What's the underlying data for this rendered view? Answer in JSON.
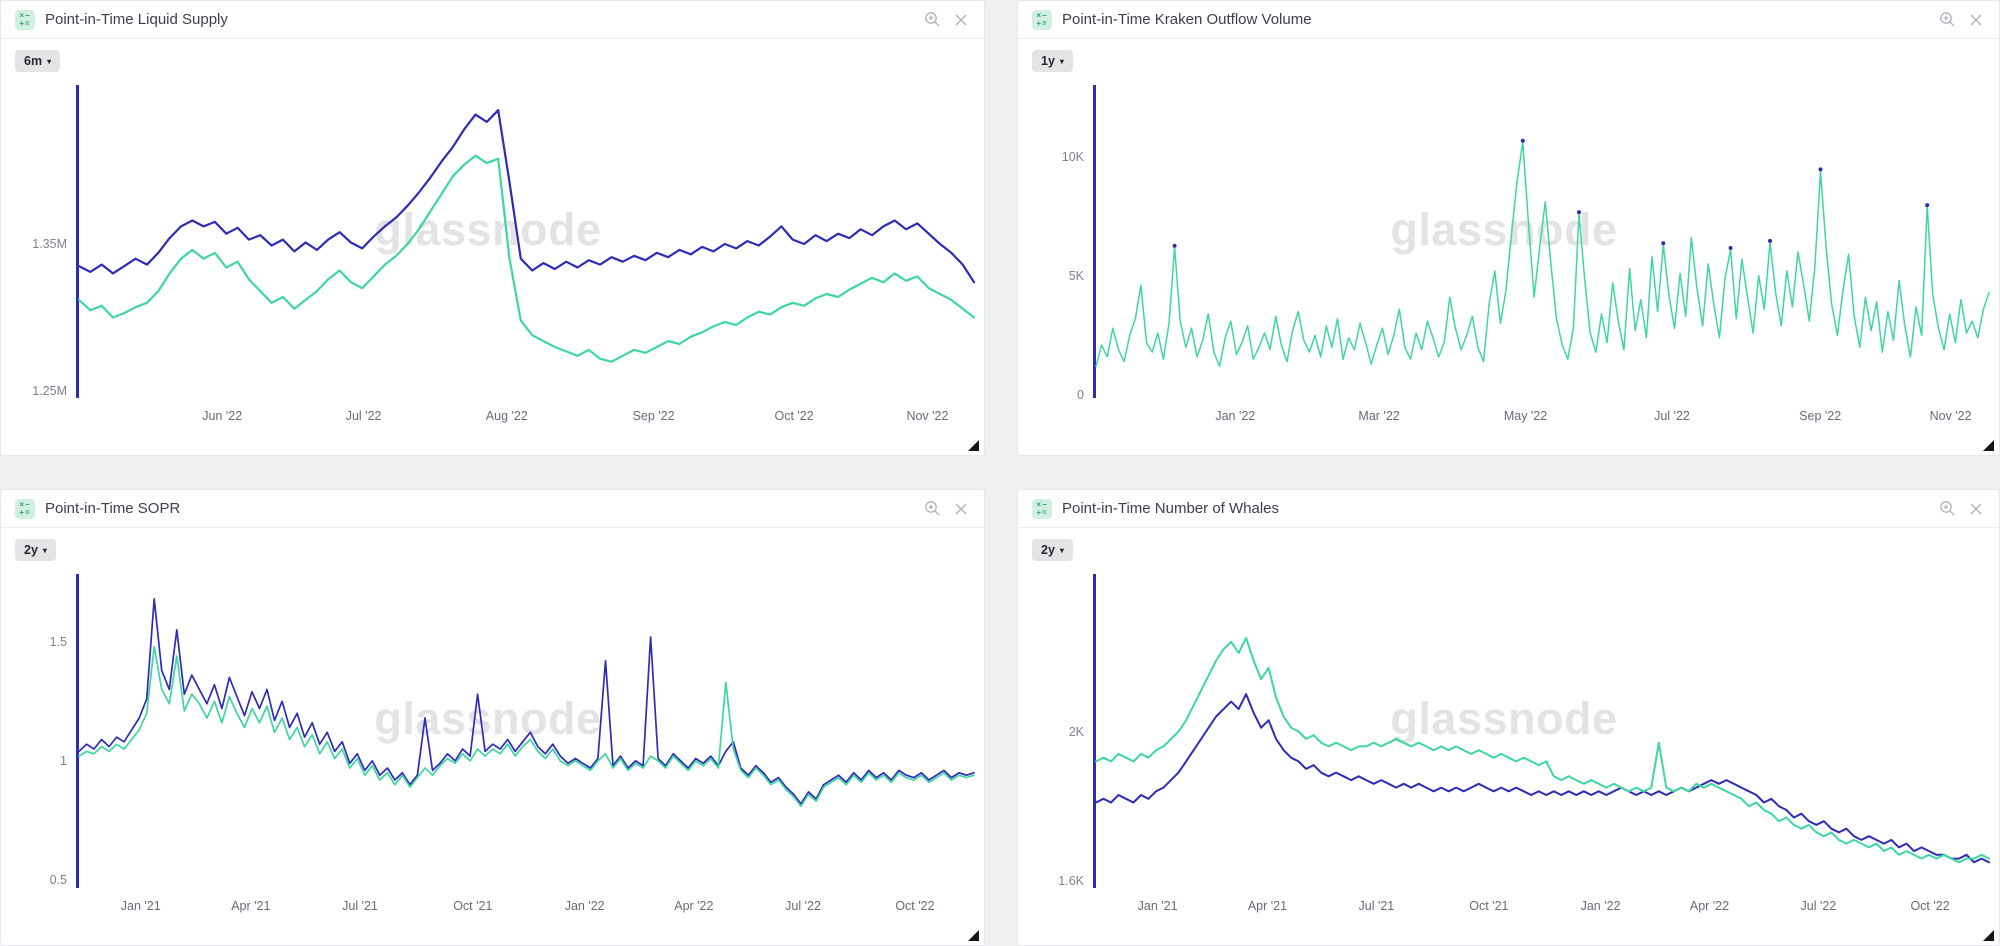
{
  "watermark": "glassnode",
  "ui": {
    "caret": "▾",
    "metric_icon_top": "×−",
    "metric_icon_bottom": "+="
  },
  "colors": {
    "indigo": "#2F2BB5",
    "teal": "#3ED6A2",
    "axis": "#2F2BB5",
    "watermark": "#e3e3e5",
    "icon_bg": "#d2f0e2",
    "icon_glyph": "#2d9e77",
    "action_icon": "#b2b6bc"
  },
  "chart_data": [
    {
      "title": "Point-in-Time Liquid Supply",
      "range_label": "6m",
      "type": "line",
      "ylim": [
        1.2453,
        1.4581
      ],
      "y_ticks": [
        {
          "label": "1.35M",
          "value": 1.35
        },
        {
          "label": "1.25M",
          "value": 1.25
        }
      ],
      "x_ticks": [
        {
          "label": "Jun '22",
          "pos": 0.16
        },
        {
          "label": "Jul '22",
          "pos": 0.318
        },
        {
          "label": "Aug '22",
          "pos": 0.478
        },
        {
          "label": "Sep '22",
          "pos": 0.642
        },
        {
          "label": "Oct '22",
          "pos": 0.799
        },
        {
          "label": "Nov '22",
          "pos": 0.948
        }
      ],
      "series": [
        {
          "name": "indigo",
          "color": "#2F2BB5",
          "width": 2.2,
          "values": [
            1.335,
            1.331,
            1.336,
            1.33,
            1.335,
            1.34,
            1.336,
            1.344,
            1.354,
            1.362,
            1.366,
            1.362,
            1.365,
            1.357,
            1.361,
            1.353,
            1.356,
            1.349,
            1.353,
            1.345,
            1.351,
            1.346,
            1.353,
            1.358,
            1.351,
            1.347,
            1.355,
            1.362,
            1.368,
            1.376,
            1.385,
            1.395,
            1.406,
            1.416,
            1.428,
            1.438,
            1.433,
            1.441,
            1.392,
            1.34,
            1.332,
            1.337,
            1.333,
            1.338,
            1.334,
            1.339,
            1.336,
            1.341,
            1.338,
            1.342,
            1.339,
            1.344,
            1.341,
            1.346,
            1.343,
            1.348,
            1.345,
            1.35,
            1.347,
            1.352,
            1.349,
            1.355,
            1.362,
            1.353,
            1.35,
            1.356,
            1.352,
            1.357,
            1.354,
            1.36,
            1.356,
            1.362,
            1.366,
            1.36,
            1.364,
            1.357,
            1.35,
            1.344,
            1.336,
            1.324
          ]
        },
        {
          "name": "teal",
          "color": "#3ED6A2",
          "width": 2.2,
          "values": [
            1.312,
            1.305,
            1.308,
            1.3,
            1.303,
            1.307,
            1.31,
            1.318,
            1.33,
            1.34,
            1.346,
            1.34,
            1.344,
            1.334,
            1.338,
            1.326,
            1.318,
            1.31,
            1.314,
            1.306,
            1.312,
            1.318,
            1.326,
            1.332,
            1.324,
            1.32,
            1.328,
            1.336,
            1.342,
            1.35,
            1.36,
            1.372,
            1.384,
            1.396,
            1.404,
            1.41,
            1.405,
            1.408,
            1.34,
            1.298,
            1.288,
            1.284,
            1.28,
            1.277,
            1.274,
            1.278,
            1.272,
            1.27,
            1.274,
            1.278,
            1.276,
            1.28,
            1.284,
            1.282,
            1.287,
            1.29,
            1.294,
            1.297,
            1.295,
            1.3,
            1.304,
            1.302,
            1.307,
            1.31,
            1.308,
            1.313,
            1.316,
            1.314,
            1.319,
            1.323,
            1.327,
            1.324,
            1.33,
            1.325,
            1.328,
            1.32,
            1.316,
            1.312,
            1.306,
            1.3
          ]
        }
      ]
    },
    {
      "title": "Point-in-Time Kraken Outflow Volume",
      "range_label": "1y",
      "type": "line",
      "ylim": [
        -0.125,
        13.0
      ],
      "y_ticks": [
        {
          "label": "10K",
          "value": 10
        },
        {
          "label": "5K",
          "value": 5
        },
        {
          "label": "0",
          "value": 0
        }
      ],
      "x_ticks": [
        {
          "label": "Jan '22",
          "pos": 0.156
        },
        {
          "label": "Mar '22",
          "pos": 0.317
        },
        {
          "label": "May '22",
          "pos": 0.481
        },
        {
          "label": "Jul '22",
          "pos": 0.645
        },
        {
          "label": "Sep '22",
          "pos": 0.811
        },
        {
          "label": "Nov '22",
          "pos": 0.957
        }
      ],
      "series": [
        {
          "name": "teal",
          "color": "#3ED6A2",
          "width": 1.5,
          "marker_color": "#2F2BB5",
          "marker_indices": [
            14,
            76,
            86,
            101,
            113,
            120,
            129,
            148
          ],
          "values": [
            1.2,
            2.1,
            1.6,
            2.8,
            1.9,
            1.4,
            2.5,
            3.2,
            4.6,
            2.2,
            1.8,
            2.6,
            1.5,
            3.0,
            6.2,
            3.1,
            2.0,
            2.8,
            1.6,
            2.3,
            3.4,
            1.8,
            1.2,
            2.4,
            3.1,
            1.7,
            2.2,
            2.9,
            1.5,
            2.0,
            2.6,
            1.9,
            3.3,
            2.1,
            1.4,
            2.7,
            3.5,
            2.3,
            1.8,
            2.5,
            1.6,
            2.9,
            2.0,
            3.2,
            1.5,
            2.4,
            1.9,
            3.0,
            2.2,
            1.3,
            2.1,
            2.8,
            1.7,
            2.5,
            3.6,
            2.0,
            1.5,
            2.6,
            1.9,
            3.1,
            2.4,
            1.6,
            2.2,
            4.1,
            2.8,
            1.9,
            2.5,
            3.3,
            2.0,
            1.4,
            3.8,
            5.2,
            3.0,
            4.4,
            6.8,
            9.0,
            10.6,
            7.2,
            4.1,
            6.2,
            8.1,
            5.5,
            3.2,
            2.1,
            1.5,
            2.8,
            7.6,
            4.9,
            2.6,
            1.8,
            3.4,
            2.2,
            4.7,
            3.1,
            1.9,
            5.3,
            2.7,
            4.0,
            2.4,
            5.8,
            3.5,
            6.3,
            4.2,
            2.8,
            5.1,
            3.3,
            6.6,
            4.5,
            2.9,
            5.5,
            3.8,
            2.4,
            4.9,
            6.1,
            3.2,
            5.7,
            4.1,
            2.6,
            5.0,
            3.6,
            6.4,
            4.3,
            2.9,
            5.2,
            3.7,
            6.0,
            4.6,
            3.1,
            5.4,
            9.4,
            6.2,
            3.8,
            2.5,
            4.4,
            5.9,
            3.3,
            2.0,
            4.1,
            2.7,
            3.9,
            1.8,
            3.5,
            2.3,
            4.8,
            2.9,
            1.6,
            3.7,
            2.5,
            7.9,
            4.2,
            2.8,
            1.9,
            3.4,
            2.2,
            4.0,
            2.6,
            3.1,
            2.4,
            3.6,
            4.3
          ]
        }
      ]
    },
    {
      "title": "Point-in-Time SOPR",
      "range_label": "2y",
      "type": "line",
      "ylim": [
        0.4665,
        1.7845
      ],
      "y_ticks": [
        {
          "label": "1.5",
          "value": 1.5
        },
        {
          "label": "1",
          "value": 1.0
        },
        {
          "label": "0.5",
          "value": 0.5
        }
      ],
      "x_ticks": [
        {
          "label": "Jan '21",
          "pos": 0.069
        },
        {
          "label": "Apr '21",
          "pos": 0.192
        },
        {
          "label": "Jul '21",
          "pos": 0.314
        },
        {
          "label": "Oct '21",
          "pos": 0.44
        },
        {
          "label": "Jan '22",
          "pos": 0.565
        },
        {
          "label": "Apr '22",
          "pos": 0.687
        },
        {
          "label": "Jul '22",
          "pos": 0.809
        },
        {
          "label": "Oct '22",
          "pos": 0.934
        }
      ],
      "series": [
        {
          "name": "indigo",
          "color": "#2F2BB5",
          "width": 1.7,
          "values": [
            1.04,
            1.07,
            1.05,
            1.09,
            1.06,
            1.1,
            1.08,
            1.13,
            1.18,
            1.26,
            1.68,
            1.38,
            1.3,
            1.55,
            1.28,
            1.36,
            1.3,
            1.24,
            1.32,
            1.22,
            1.35,
            1.27,
            1.19,
            1.29,
            1.22,
            1.3,
            1.17,
            1.25,
            1.14,
            1.2,
            1.1,
            1.16,
            1.07,
            1.12,
            1.04,
            1.08,
            0.99,
            1.03,
            0.96,
            1.0,
            0.94,
            0.97,
            0.92,
            0.95,
            0.9,
            0.94,
            1.18,
            0.96,
            0.99,
            1.03,
            1.0,
            1.05,
            1.02,
            1.28,
            1.04,
            1.07,
            1.05,
            1.09,
            1.04,
            1.08,
            1.12,
            1.06,
            1.03,
            1.07,
            1.02,
            0.99,
            1.01,
            0.99,
            0.97,
            1.01,
            1.42,
            0.98,
            1.02,
            0.97,
            1.0,
            0.98,
            1.52,
            1.01,
            0.98,
            1.03,
            1.0,
            0.97,
            1.01,
            0.99,
            1.02,
            0.98,
            1.04,
            1.08,
            0.97,
            0.94,
            0.98,
            0.95,
            0.91,
            0.93,
            0.89,
            0.86,
            0.82,
            0.87,
            0.84,
            0.9,
            0.92,
            0.94,
            0.91,
            0.95,
            0.92,
            0.96,
            0.93,
            0.95,
            0.92,
            0.96,
            0.94,
            0.93,
            0.95,
            0.92,
            0.94,
            0.96,
            0.93,
            0.95,
            0.94,
            0.95
          ]
        },
        {
          "name": "teal",
          "color": "#3ED6A2",
          "width": 1.7,
          "values": [
            1.02,
            1.04,
            1.03,
            1.06,
            1.04,
            1.07,
            1.05,
            1.09,
            1.13,
            1.2,
            1.48,
            1.3,
            1.24,
            1.44,
            1.21,
            1.28,
            1.24,
            1.18,
            1.25,
            1.16,
            1.27,
            1.2,
            1.14,
            1.22,
            1.16,
            1.23,
            1.12,
            1.18,
            1.09,
            1.14,
            1.06,
            1.11,
            1.03,
            1.08,
            1.01,
            1.05,
            0.97,
            1.01,
            0.94,
            0.98,
            0.92,
            0.95,
            0.9,
            0.94,
            0.89,
            0.93,
            0.97,
            0.94,
            0.98,
            1.01,
            0.99,
            1.03,
            1.0,
            1.05,
            1.02,
            1.05,
            1.03,
            1.07,
            1.02,
            1.06,
            1.09,
            1.04,
            1.01,
            1.05,
            1.0,
            0.98,
            1.0,
            0.98,
            0.96,
            1.0,
            1.03,
            0.97,
            1.01,
            0.96,
            0.99,
            0.97,
            1.02,
            1.0,
            0.97,
            1.02,
            0.99,
            0.96,
            1.0,
            0.98,
            1.01,
            0.97,
            1.33,
            1.05,
            0.96,
            0.93,
            0.97,
            0.94,
            0.9,
            0.92,
            0.88,
            0.85,
            0.81,
            0.86,
            0.83,
            0.89,
            0.91,
            0.93,
            0.9,
            0.94,
            0.91,
            0.95,
            0.92,
            0.94,
            0.91,
            0.95,
            0.93,
            0.92,
            0.94,
            0.91,
            0.93,
            0.95,
            0.92,
            0.94,
            0.93,
            0.94
          ]
        }
      ]
    },
    {
      "title": "Point-in-Time Number of Whales",
      "range_label": "2y",
      "type": "line",
      "ylim": [
        1.5813,
        2.4213
      ],
      "y_ticks": [
        {
          "label": "2K",
          "value": 2.0
        },
        {
          "label": "1.6K",
          "value": 1.6
        }
      ],
      "x_ticks": [
        {
          "label": "Jan '21",
          "pos": 0.069
        },
        {
          "label": "Apr '21",
          "pos": 0.192
        },
        {
          "label": "Jul '21",
          "pos": 0.314
        },
        {
          "label": "Oct '21",
          "pos": 0.44
        },
        {
          "label": "Jan '22",
          "pos": 0.565
        },
        {
          "label": "Apr '22",
          "pos": 0.687
        },
        {
          "label": "Jul '22",
          "pos": 0.809
        },
        {
          "label": "Oct '22",
          "pos": 0.934
        }
      ],
      "series": [
        {
          "name": "indigo",
          "color": "#2F2BB5",
          "width": 2.0,
          "values": [
            1.81,
            1.82,
            1.81,
            1.83,
            1.82,
            1.81,
            1.83,
            1.82,
            1.84,
            1.85,
            1.87,
            1.89,
            1.92,
            1.95,
            1.98,
            2.01,
            2.04,
            2.06,
            2.08,
            2.06,
            2.1,
            2.05,
            2.01,
            2.03,
            1.98,
            1.95,
            1.93,
            1.92,
            1.9,
            1.91,
            1.89,
            1.88,
            1.89,
            1.88,
            1.87,
            1.88,
            1.87,
            1.86,
            1.87,
            1.86,
            1.85,
            1.86,
            1.85,
            1.86,
            1.85,
            1.84,
            1.85,
            1.84,
            1.85,
            1.84,
            1.85,
            1.86,
            1.85,
            1.84,
            1.85,
            1.84,
            1.85,
            1.84,
            1.83,
            1.84,
            1.83,
            1.84,
            1.83,
            1.84,
            1.83,
            1.84,
            1.83,
            1.84,
            1.83,
            1.84,
            1.85,
            1.84,
            1.83,
            1.84,
            1.83,
            1.84,
            1.83,
            1.84,
            1.85,
            1.84,
            1.85,
            1.86,
            1.87,
            1.86,
            1.87,
            1.86,
            1.85,
            1.84,
            1.83,
            1.81,
            1.82,
            1.8,
            1.79,
            1.77,
            1.78,
            1.76,
            1.75,
            1.76,
            1.74,
            1.73,
            1.74,
            1.72,
            1.71,
            1.72,
            1.71,
            1.7,
            1.71,
            1.69,
            1.7,
            1.68,
            1.69,
            1.68,
            1.67,
            1.67,
            1.66,
            1.66,
            1.67,
            1.65,
            1.66,
            1.65
          ]
        },
        {
          "name": "teal",
          "color": "#3ED6A2",
          "width": 2.0,
          "values": [
            1.92,
            1.93,
            1.92,
            1.94,
            1.93,
            1.92,
            1.94,
            1.93,
            1.95,
            1.96,
            1.98,
            2.0,
            2.03,
            2.07,
            2.11,
            2.15,
            2.19,
            2.22,
            2.24,
            2.21,
            2.25,
            2.19,
            2.14,
            2.17,
            2.09,
            2.04,
            2.01,
            2.0,
            1.98,
            1.99,
            1.97,
            1.96,
            1.97,
            1.96,
            1.95,
            1.96,
            1.96,
            1.97,
            1.96,
            1.97,
            1.98,
            1.97,
            1.96,
            1.97,
            1.96,
            1.95,
            1.96,
            1.95,
            1.96,
            1.95,
            1.94,
            1.95,
            1.94,
            1.93,
            1.94,
            1.93,
            1.92,
            1.93,
            1.92,
            1.91,
            1.92,
            1.88,
            1.87,
            1.88,
            1.87,
            1.86,
            1.87,
            1.86,
            1.85,
            1.86,
            1.85,
            1.84,
            1.85,
            1.84,
            1.85,
            1.97,
            1.85,
            1.84,
            1.85,
            1.84,
            1.86,
            1.85,
            1.86,
            1.85,
            1.84,
            1.83,
            1.82,
            1.8,
            1.81,
            1.79,
            1.78,
            1.76,
            1.77,
            1.75,
            1.74,
            1.75,
            1.73,
            1.72,
            1.73,
            1.71,
            1.7,
            1.71,
            1.7,
            1.69,
            1.7,
            1.68,
            1.69,
            1.67,
            1.68,
            1.67,
            1.66,
            1.67,
            1.66,
            1.67,
            1.66,
            1.65,
            1.66,
            1.66,
            1.67,
            1.66
          ]
        }
      ]
    }
  ]
}
